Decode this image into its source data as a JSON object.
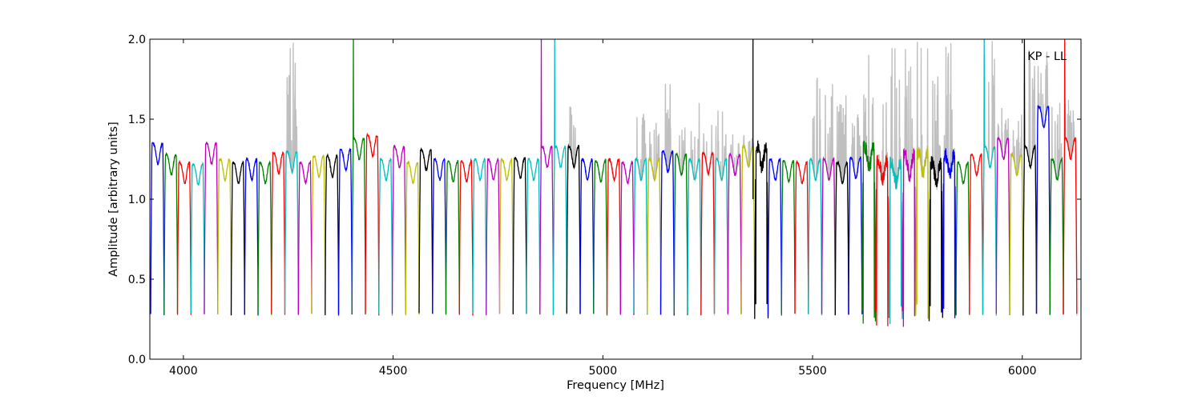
{
  "chart_data": {
    "type": "line",
    "title": "",
    "xlabel": "Frequency [MHz]",
    "ylabel": "Amplitude [arbitrary units]",
    "xlim": [
      3920,
      6140
    ],
    "ylim": [
      0.0,
      2.0
    ],
    "xticks": [
      4000,
      4500,
      5000,
      5500,
      6000
    ],
    "yticks": [
      0.0,
      0.5,
      1.0,
      1.5,
      2.0
    ],
    "xtick_labels": [
      "4000",
      "4500",
      "5000",
      "5500",
      "6000"
    ],
    "ytick_labels": [
      "0.0",
      "0.5",
      "1.0",
      "1.5",
      "2.0"
    ],
    "grid": false,
    "legend": "none",
    "annotation": {
      "text": "KP - LL",
      "position": "top-right"
    },
    "marker_lines": [
      {
        "x": 5358,
        "color": "#000000"
      }
    ],
    "series_colors": [
      "#0000ff",
      "#008000",
      "#ff0000",
      "#00bfbf",
      "#bf00bf",
      "#bfbf00",
      "#000000"
    ],
    "raw_color": "#bfbfbf",
    "channel_width_mhz": 32,
    "channels": [
      {
        "x0": 3922,
        "level": 1.32,
        "color": "#0000ff"
      },
      {
        "x0": 3954,
        "level": 1.25,
        "color": "#008000"
      },
      {
        "x0": 3986,
        "level": 1.2,
        "color": "#ff0000"
      },
      {
        "x0": 4018,
        "level": 1.19,
        "color": "#00bfbf"
      },
      {
        "x0": 4050,
        "level": 1.32,
        "color": "#bf00bf"
      },
      {
        "x0": 4082,
        "level": 1.22,
        "color": "#bfbf00"
      },
      {
        "x0": 4114,
        "level": 1.2,
        "color": "#000000"
      },
      {
        "x0": 4146,
        "level": 1.22,
        "color": "#0000ff"
      },
      {
        "x0": 4178,
        "level": 1.2,
        "color": "#008000"
      },
      {
        "x0": 4210,
        "level": 1.26,
        "color": "#ff0000"
      },
      {
        "x0": 4242,
        "level": 1.27,
        "color": "#00bfbf",
        "raw_peak": 2.0
      },
      {
        "x0": 4274,
        "level": 1.2,
        "color": "#bf00bf"
      },
      {
        "x0": 4306,
        "level": 1.24,
        "color": "#bfbf00"
      },
      {
        "x0": 4338,
        "level": 1.24,
        "color": "#000000"
      },
      {
        "x0": 4370,
        "level": 1.28,
        "color": "#0000ff"
      },
      {
        "x0": 4402,
        "level": 1.35,
        "color": "#008000",
        "spike": 2.0
      },
      {
        "x0": 4434,
        "level": 1.37,
        "color": "#ff0000"
      },
      {
        "x0": 4466,
        "level": 1.22,
        "color": "#00bfbf"
      },
      {
        "x0": 4498,
        "level": 1.3,
        "color": "#bf00bf"
      },
      {
        "x0": 4530,
        "level": 1.2,
        "color": "#bfbf00"
      },
      {
        "x0": 4562,
        "level": 1.28,
        "color": "#000000"
      },
      {
        "x0": 4594,
        "level": 1.22,
        "color": "#0000ff"
      },
      {
        "x0": 4626,
        "level": 1.21,
        "color": "#008000"
      },
      {
        "x0": 4658,
        "level": 1.21,
        "color": "#ff0000"
      },
      {
        "x0": 4690,
        "level": 1.22,
        "color": "#00bfbf"
      },
      {
        "x0": 4722,
        "level": 1.22,
        "color": "#bf00bf"
      },
      {
        "x0": 4754,
        "level": 1.22,
        "color": "#bfbf00"
      },
      {
        "x0": 4786,
        "level": 1.23,
        "color": "#000000"
      },
      {
        "x0": 4818,
        "level": 1.22,
        "color": "#00bfbf"
      },
      {
        "x0": 4850,
        "level": 1.3,
        "color": "#bf00bf",
        "spike": 2.0
      },
      {
        "x0": 4882,
        "level": 1.3,
        "color": "#00bfbf",
        "spike": 2.0
      },
      {
        "x0": 4914,
        "level": 1.3,
        "color": "#000000",
        "raw_peak": 1.62
      },
      {
        "x0": 4946,
        "level": 1.22,
        "color": "#0000ff"
      },
      {
        "x0": 4978,
        "level": 1.21,
        "color": "#008000"
      },
      {
        "x0": 5010,
        "level": 1.22,
        "color": "#ff0000"
      },
      {
        "x0": 5042,
        "level": 1.2,
        "color": "#bf00bf"
      },
      {
        "x0": 5074,
        "level": 1.22,
        "color": "#00bfbf",
        "raw_peak": 1.56
      },
      {
        "x0": 5106,
        "level": 1.22,
        "color": "#bfbf00",
        "raw_peak": 1.5
      },
      {
        "x0": 5138,
        "level": 1.27,
        "color": "#0000ff",
        "raw_peak": 1.73
      },
      {
        "x0": 5170,
        "level": 1.25,
        "color": "#008000",
        "raw_peak": 1.47
      },
      {
        "x0": 5202,
        "level": 1.22,
        "color": "#00bfbf",
        "raw_peak": 1.65
      },
      {
        "x0": 5234,
        "level": 1.26,
        "color": "#ff0000",
        "raw_peak": 1.47
      },
      {
        "x0": 5266,
        "level": 1.22,
        "color": "#00bfbf",
        "raw_peak": 1.58
      },
      {
        "x0": 5298,
        "level": 1.25,
        "color": "#bf00bf",
        "raw_peak": 1.41
      },
      {
        "x0": 5330,
        "level": 1.3,
        "color": "#bfbf00",
        "raw_peak": 1.44
      },
      {
        "x0": 5362,
        "level": 1.3,
        "color": "#000000",
        "noisy": true
      },
      {
        "x0": 5394,
        "level": 1.22,
        "color": "#0000ff"
      },
      {
        "x0": 5426,
        "level": 1.21,
        "color": "#008000"
      },
      {
        "x0": 5458,
        "level": 1.2,
        "color": "#ff0000"
      },
      {
        "x0": 5490,
        "level": 1.22,
        "color": "#00bfbf",
        "raw_peak": 1.8
      },
      {
        "x0": 5522,
        "level": 1.22,
        "color": "#bf00bf",
        "raw_peak": 1.72
      },
      {
        "x0": 5554,
        "level": 1.2,
        "color": "#000000",
        "raw_peak": 1.65
      },
      {
        "x0": 5586,
        "level": 1.23,
        "color": "#0000ff",
        "raw_peak": 1.53
      },
      {
        "x0": 5618,
        "level": 1.3,
        "color": "#008000",
        "raw_peak": 2.0,
        "noisy": true
      },
      {
        "x0": 5650,
        "level": 1.22,
        "color": "#ff0000",
        "raw_peak": 1.85,
        "noisy": true
      },
      {
        "x0": 5682,
        "level": 1.2,
        "color": "#00bfbf",
        "raw_peak": 2.0,
        "noisy": true
      },
      {
        "x0": 5714,
        "level": 1.25,
        "color": "#bf00bf",
        "raw_peak": 1.95,
        "noisy": true
      },
      {
        "x0": 5746,
        "level": 1.26,
        "color": "#bfbf00",
        "raw_peak": 2.0,
        "noisy": true
      },
      {
        "x0": 5778,
        "level": 1.2,
        "color": "#000000",
        "raw_peak": 1.8,
        "noisy": true
      },
      {
        "x0": 5810,
        "level": 1.25,
        "color": "#0000ff",
        "raw_peak": 2.0,
        "noisy": true
      },
      {
        "x0": 5842,
        "level": 1.2,
        "color": "#008000"
      },
      {
        "x0": 5874,
        "level": 1.25,
        "color": "#ff0000"
      },
      {
        "x0": 5906,
        "level": 1.3,
        "color": "#00bfbf",
        "spike": 2.0,
        "raw_peak": 2.0
      },
      {
        "x0": 5938,
        "level": 1.35,
        "color": "#bf00bf",
        "raw_peak": 1.65
      },
      {
        "x0": 5970,
        "level": 1.25,
        "color": "#bfbf00",
        "raw_peak": 1.6
      },
      {
        "x0": 6002,
        "level": 1.3,
        "color": "#000000",
        "spike": 2.0,
        "raw_peak": 2.0
      },
      {
        "x0": 6034,
        "level": 1.55,
        "color": "#0000ff",
        "raw_peak": 2.0
      },
      {
        "x0": 6066,
        "level": 1.22,
        "color": "#008000",
        "raw_peak": 1.62
      },
      {
        "x0": 6098,
        "level": 1.35,
        "color": "#ff0000",
        "spike": 2.0,
        "raw_peak": 1.65
      }
    ]
  }
}
